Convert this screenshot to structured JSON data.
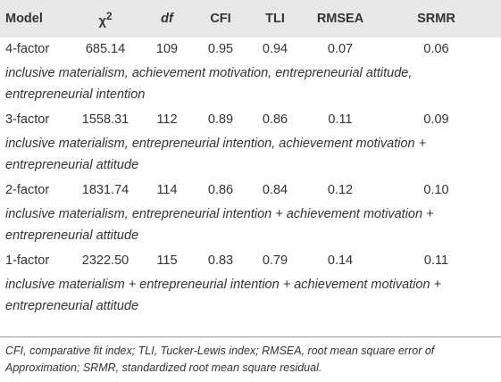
{
  "table": {
    "header": [
      "Model",
      {
        "text": "χ",
        "sup": "2"
      },
      "df",
      "CFI",
      "TLI",
      "RMSEA",
      "SRMR"
    ],
    "rows": [
      {
        "cells": [
          "4-factor",
          "685.14",
          "109",
          "0.95",
          "0.94",
          "0.07",
          "0.06"
        ],
        "description": "inclusive materialism, achievement motivation, entrepreneurial attitude, entrepreneurial intention"
      },
      {
        "cells": [
          "3-factor",
          "1558.31",
          "112",
          "0.89",
          "0.86",
          "0.11",
          "0.09"
        ],
        "description": "inclusive materialism, entrepreneurial intention, achievement motivation + entrepreneurial attitude"
      },
      {
        "cells": [
          "2-factor",
          "1831.74",
          "114",
          "0.86",
          "0.84",
          "0.12",
          "0.10"
        ],
        "description": "inclusive materialism, entrepreneurial intention + achievement motivation + entrepreneurial attitude"
      },
      {
        "cells": [
          "1-factor",
          "2322.50",
          "115",
          "0.83",
          "0.79",
          "0.14",
          "0.11"
        ],
        "description": "inclusive materialism + entrepreneurial intention + achievement motivation + entrepreneurial attitude"
      }
    ],
    "footnote": "CFI, comparative fit index; TLI, Tucker-Lewis index; RMSEA, root mean square error of Approximation; SRMR, standardized root mean square residual."
  }
}
